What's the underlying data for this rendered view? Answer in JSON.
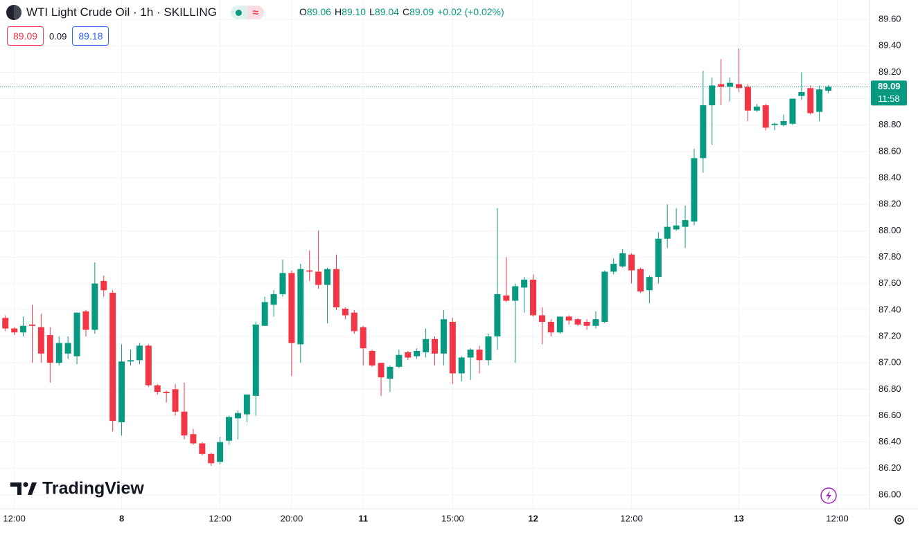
{
  "header": {
    "symbol": "WTI Light Crude Oil · 1h · SKILLING",
    "ohlc": [
      {
        "label": "O",
        "value": "89.06"
      },
      {
        "label": "H",
        "value": "89.10"
      },
      {
        "label": "L",
        "value": "89.04"
      },
      {
        "label": "C",
        "value": "89.09"
      }
    ],
    "change": "+0.02 (+0.02%)",
    "sell": "89.09",
    "spread": "0.09",
    "buy": "89.18"
  },
  "watermark": "TradingView",
  "chart_data": {
    "type": "candlestick",
    "up_color": "#089981",
    "down_color": "#f23645",
    "grid": true,
    "open": [
      87.34,
      87.26,
      87.23,
      87.29,
      87.27,
      87.21,
      87.0,
      87.07,
      87.05,
      87.39,
      87.25,
      87.62,
      87.53,
      86.55,
      87.01,
      87.02,
      87.13,
      86.83,
      86.78,
      86.8,
      86.63,
      86.46,
      86.39,
      86.31,
      86.25,
      86.41,
      86.58,
      86.61,
      86.75,
      87.28,
      87.44,
      87.52,
      87.68,
      87.14,
      87.7,
      87.69,
      87.59,
      87.71,
      87.41,
      87.38,
      87.27,
      87.09,
      87.0,
      86.88,
      86.97,
      87.08,
      87.05,
      87.08,
      87.18,
      87.07,
      87.31,
      86.92,
      87.04,
      87.1,
      87.02,
      87.2,
      87.51,
      87.47,
      87.57,
      87.63,
      87.36,
      87.31,
      87.23,
      87.35,
      87.33,
      87.31,
      87.28,
      87.31,
      87.69,
      87.73,
      87.82,
      87.71,
      87.55,
      87.65,
      87.94,
      88.01,
      88.03,
      88.07,
      88.55,
      88.95,
      89.11,
      89.09,
      89.11,
      89.09,
      88.91,
      88.95,
      88.8,
      88.8,
      88.81,
      89.02,
      89.08,
      88.9,
      89.06
    ],
    "high": [
      87.36,
      87.27,
      87.35,
      87.44,
      87.37,
      87.27,
      87.2,
      87.2,
      87.38,
      87.4,
      87.76,
      87.66,
      87.55,
      87.14,
      87.1,
      87.15,
      87.14,
      86.84,
      86.79,
      86.84,
      86.85,
      86.5,
      86.4,
      86.32,
      86.44,
      86.6,
      86.64,
      86.76,
      87.31,
      87.5,
      87.55,
      87.78,
      87.7,
      87.75,
      87.85,
      88.0,
      87.72,
      87.82,
      87.42,
      87.4,
      87.28,
      87.1,
      87.0,
      86.98,
      87.1,
      87.09,
      87.11,
      87.26,
      87.2,
      87.4,
      87.34,
      87.05,
      87.11,
      87.13,
      87.22,
      88.17,
      87.8,
      87.6,
      87.65,
      87.67,
      87.42,
      87.33,
      87.35,
      87.36,
      87.34,
      87.33,
      87.39,
      87.7,
      87.79,
      87.86,
      87.83,
      87.72,
      87.66,
      87.99,
      88.2,
      88.17,
      88.19,
      88.62,
      89.21,
      89.16,
      89.3,
      89.16,
      89.38,
      89.11,
      88.96,
      88.96,
      88.82,
      88.88,
      89.0,
      89.2,
      89.1,
      89.1,
      89.1
    ],
    "low": [
      87.24,
      87.21,
      87.2,
      87.0,
      87.0,
      86.85,
      86.98,
      87.03,
      86.99,
      87.2,
      87.22,
      87.5,
      86.48,
      86.45,
      86.98,
      86.99,
      86.82,
      86.76,
      86.7,
      86.6,
      86.42,
      86.38,
      86.3,
      86.22,
      86.23,
      86.38,
      86.42,
      86.55,
      86.6,
      87.28,
      87.35,
      87.5,
      86.9,
      87.0,
      87.62,
      87.56,
      87.3,
      87.4,
      87.33,
      87.22,
      86.98,
      86.97,
      86.75,
      86.78,
      86.96,
      87.02,
      87.03,
      87.04,
      86.98,
      86.98,
      86.84,
      86.86,
      86.87,
      86.92,
      86.98,
      87.1,
      87.46,
      87.0,
      87.38,
      87.35,
      87.14,
      87.2,
      87.22,
      87.29,
      87.28,
      87.25,
      87.26,
      87.3,
      87.67,
      87.72,
      87.6,
      87.53,
      87.45,
      87.6,
      87.87,
      88.0,
      87.87,
      88.04,
      88.44,
      88.65,
      88.95,
      88.98,
      89.05,
      88.83,
      88.9,
      88.76,
      88.76,
      88.79,
      88.8,
      88.99,
      88.88,
      88.83,
      89.04
    ],
    "close": [
      87.26,
      87.23,
      87.28,
      87.28,
      87.07,
      87.0,
      87.15,
      87.15,
      87.38,
      87.25,
      87.6,
      87.55,
      86.56,
      87.01,
      87.02,
      87.13,
      86.83,
      86.78,
      86.77,
      86.63,
      86.45,
      86.39,
      86.31,
      86.24,
      86.4,
      86.59,
      86.62,
      86.76,
      87.29,
      87.46,
      87.52,
      87.68,
      87.15,
      87.71,
      87.69,
      87.59,
      87.71,
      87.42,
      87.36,
      87.24,
      87.11,
      86.98,
      86.89,
      86.97,
      87.06,
      87.04,
      87.09,
      87.18,
      87.07,
      87.33,
      86.92,
      87.04,
      87.1,
      87.02,
      87.2,
      87.52,
      87.47,
      87.58,
      87.63,
      87.36,
      87.31,
      87.23,
      87.35,
      87.32,
      87.29,
      87.28,
      87.33,
      87.69,
      87.75,
      87.83,
      87.7,
      87.54,
      87.65,
      87.94,
      88.03,
      88.04,
      88.08,
      88.55,
      88.95,
      89.1,
      89.09,
      89.12,
      89.08,
      88.91,
      88.94,
      88.78,
      88.81,
      88.83,
      89.0,
      89.05,
      88.89,
      89.07,
      89.09
    ],
    "xlim": [
      -0.6,
      96.6
    ],
    "xticks": [
      {
        "value": 1,
        "label": "12:00"
      },
      {
        "value": 13,
        "label": "8"
      },
      {
        "value": 24,
        "label": "12:00"
      },
      {
        "value": 32,
        "label": "20:00"
      },
      {
        "value": 40,
        "label": "11"
      },
      {
        "value": 50,
        "label": "15:00"
      },
      {
        "value": 59,
        "label": "12"
      },
      {
        "value": 70,
        "label": "12:00"
      },
      {
        "value": 82,
        "label": "13"
      },
      {
        "value": 93,
        "label": "12:00"
      }
    ],
    "ylim": [
      85.895,
      89.747
    ],
    "yticks": [
      {
        "value": 86.0,
        "label": "86.00"
      },
      {
        "value": 86.2,
        "label": "86.20"
      },
      {
        "value": 86.4,
        "label": "86.40"
      },
      {
        "value": 86.6,
        "label": "86.60"
      },
      {
        "value": 86.8,
        "label": "86.80"
      },
      {
        "value": 87.0,
        "label": "87.00"
      },
      {
        "value": 87.2,
        "label": "87.20"
      },
      {
        "value": 87.4,
        "label": "87.40"
      },
      {
        "value": 87.6,
        "label": "87.60"
      },
      {
        "value": 87.8,
        "label": "87.80"
      },
      {
        "value": 88.0,
        "label": "88.00"
      },
      {
        "value": 88.2,
        "label": "88.20"
      },
      {
        "value": 88.4,
        "label": "88.40"
      },
      {
        "value": 88.6,
        "label": "88.60"
      },
      {
        "value": 88.8,
        "label": "88.80"
      },
      {
        "value": 89.0,
        "label": "89.00"
      },
      {
        "value": 89.2,
        "label": "89.20"
      },
      {
        "value": 89.4,
        "label": "89.40"
      },
      {
        "value": 89.6,
        "label": "89.60"
      }
    ],
    "last_price": {
      "value": 89.09,
      "label": "89.09",
      "countdown": "11:58"
    }
  }
}
